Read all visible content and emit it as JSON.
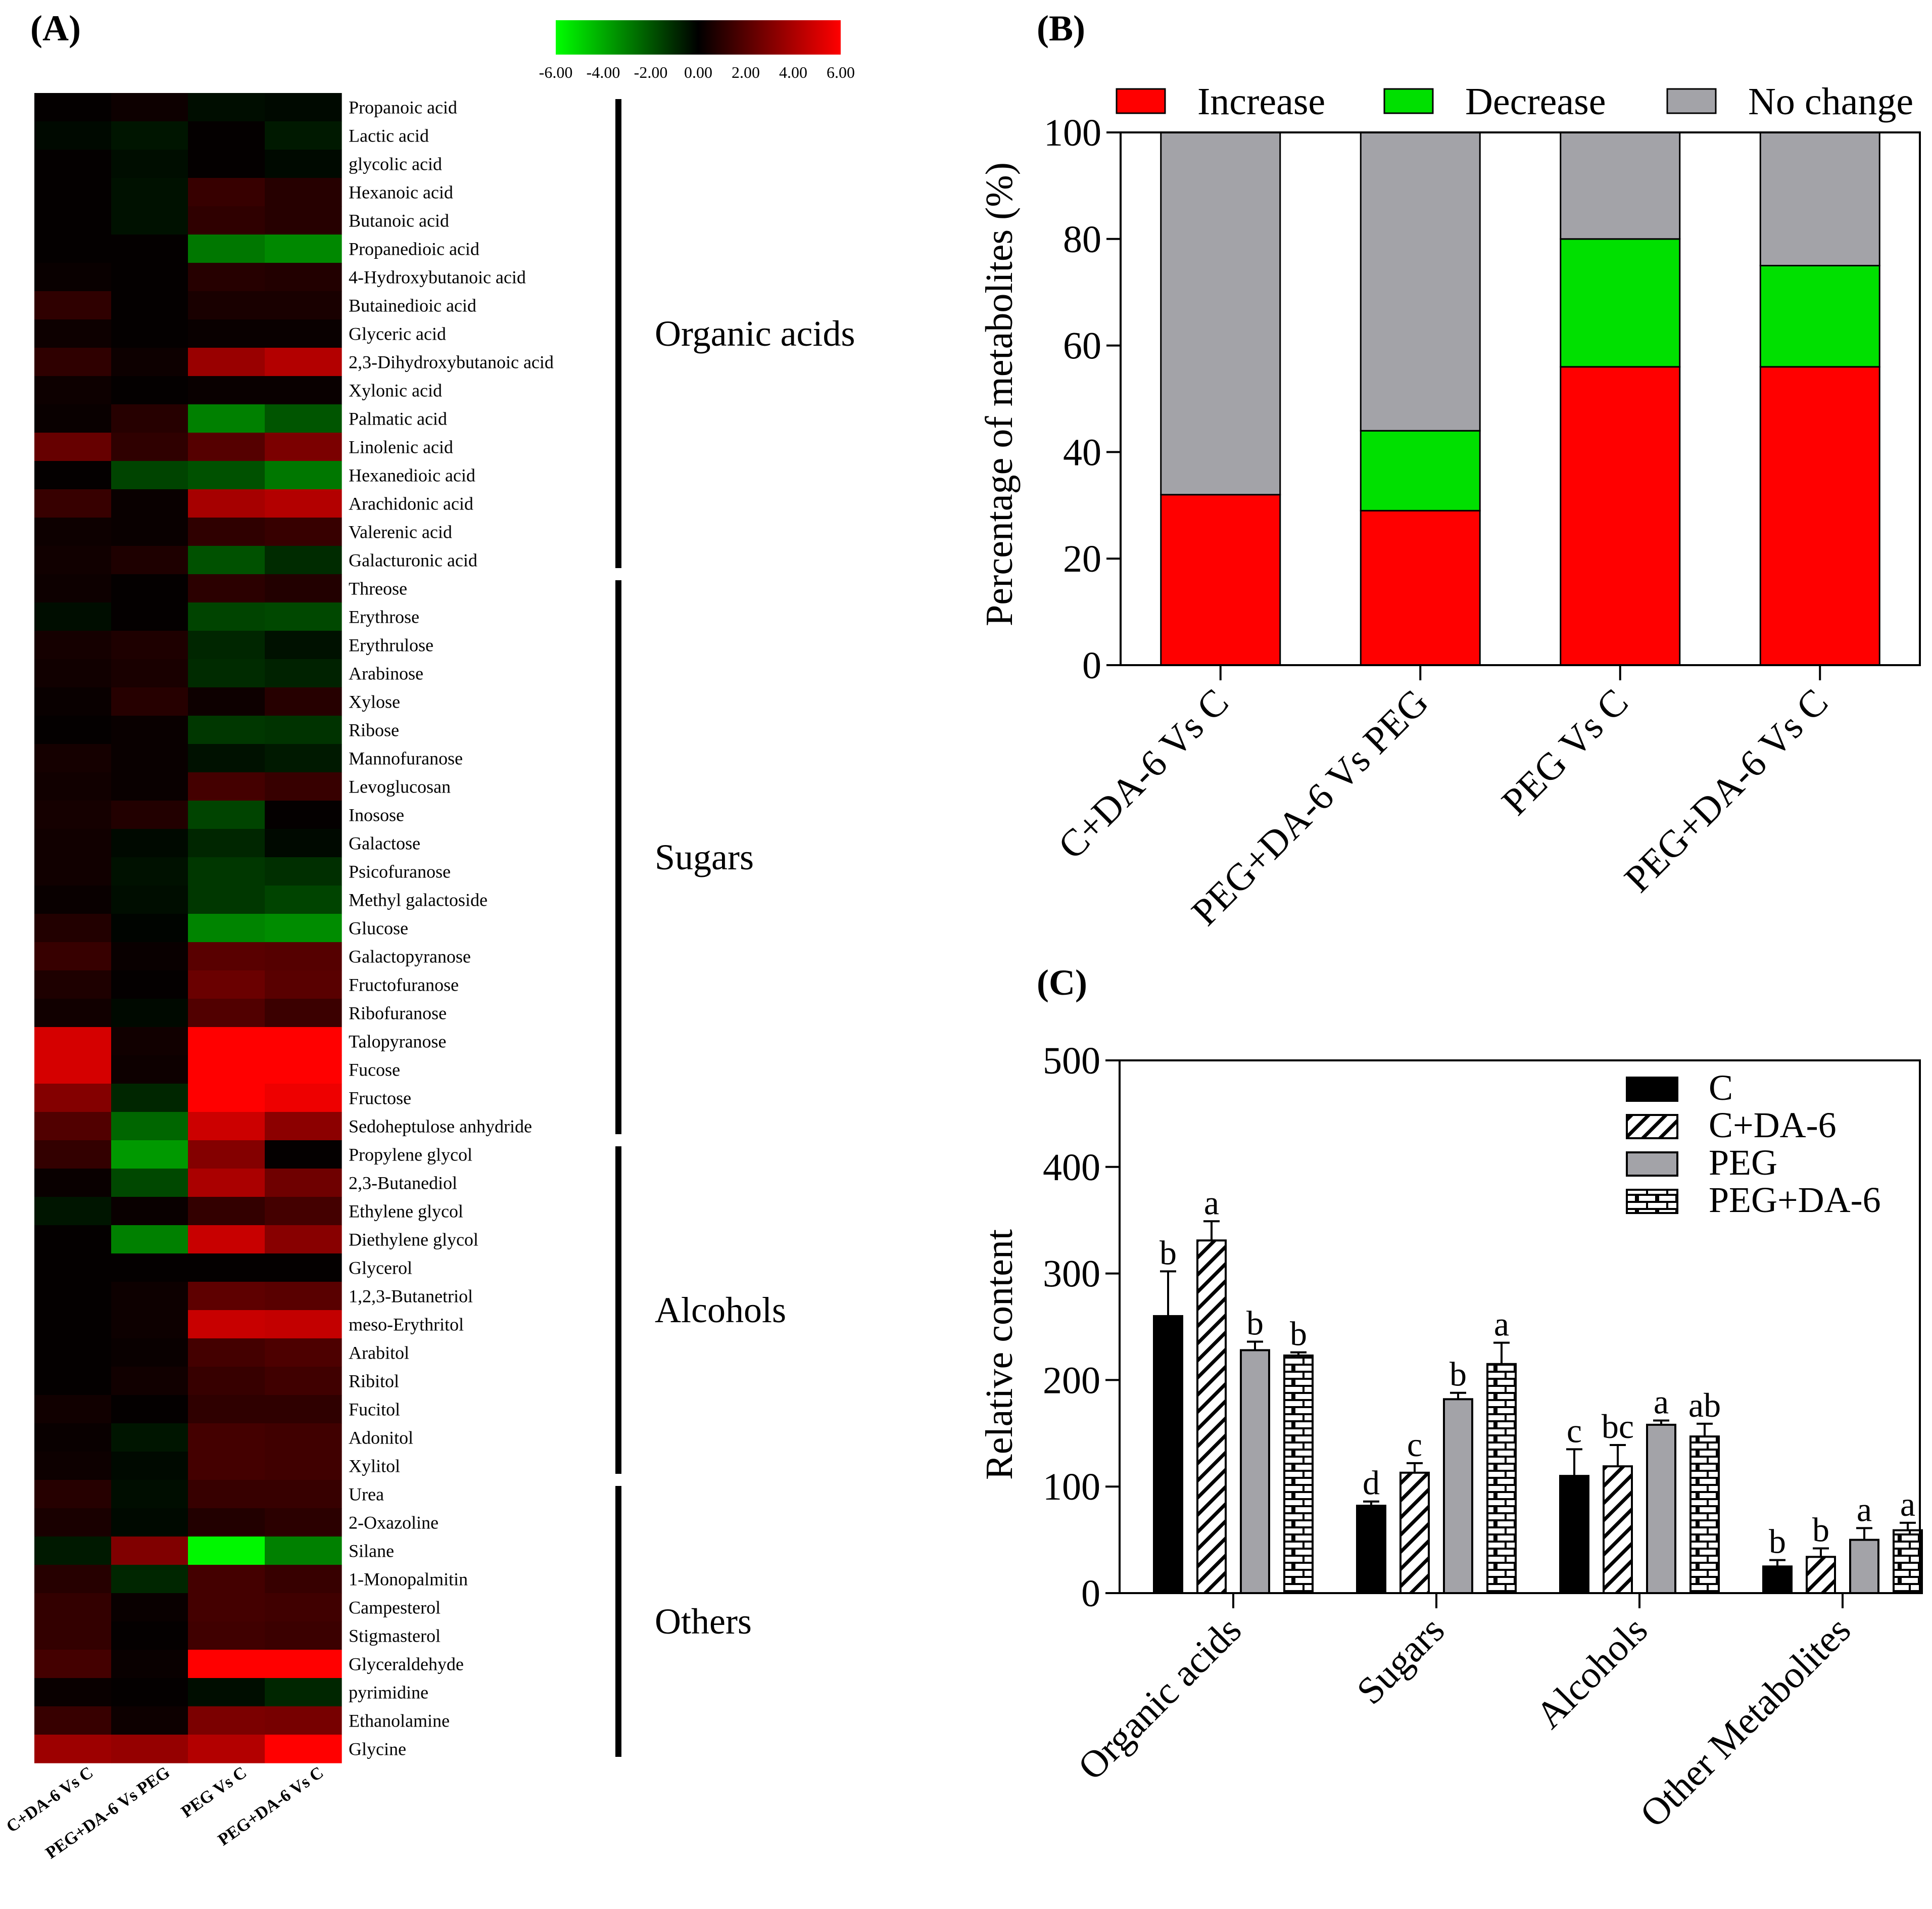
{
  "panels": {
    "a": "(A)",
    "b": "(B)",
    "c": "(C)"
  },
  "heatmap": {
    "colorbar_ticks": [
      "-6.00",
      "-4.00",
      "-2.00",
      "0.00",
      "2.00",
      "4.00",
      "6.00"
    ],
    "colorbar_range": [
      -6,
      6
    ],
    "columns": [
      "C+DA-6 Vs C",
      "PEG+DA-6 Vs PEG",
      "PEG Vs C",
      "PEG+DA-6 Vs C"
    ],
    "rows": [
      "Propanoic acid",
      "Lactic acid",
      "glycolic acid",
      "Hexanoic acid",
      "Butanoic acid",
      "Propanedioic acid",
      "4-Hydroxybutanoic acid",
      "Butainedioic acid",
      "Glyceric acid",
      "2,3-Dihydroxybutanoic acid",
      "Xylonic acid",
      "Palmatic acid",
      "Linolenic acid",
      "Hexanedioic acid",
      "Arachidonic acid",
      "Valerenic acid",
      "Galacturonic acid",
      "Threose",
      "Erythrose",
      "Erythrulose",
      "Arabinose",
      "Xylose",
      "Ribose",
      "Mannofuranose",
      "Levoglucosan",
      "Inosose",
      "Galactose",
      "Psicofuranose",
      "Methyl galactoside",
      "Glucose",
      "Galactopyranose",
      "Fructofuranose",
      "Ribofuranose",
      "Talopyranose",
      "Fucose",
      "Fructose",
      "Sedoheptulose anhydride",
      "Propylene glycol",
      "2,3-Butanediol",
      "Ethylene glycol",
      "Diethylene glycol",
      "Glycerol",
      "1,2,3-Butanetriol",
      "meso-Erythritol",
      "Arabitol",
      "Ribitol",
      "Fucitol",
      "Adonitol",
      "Xylitol",
      "Urea",
      "2-Oxazoline",
      "Silane",
      "1-Monopalmitin",
      "Campesterol",
      "Stigmasterol",
      "Glyceraldehyde",
      "pyrimidine",
      "Ethanolamine",
      "Glycine"
    ],
    "values": [
      [
        0.1,
        0.3,
        -0.3,
        -0.2
      ],
      [
        -0.2,
        -0.5,
        0.1,
        -0.6
      ],
      [
        0.1,
        -0.3,
        0.1,
        -0.2
      ],
      [
        0.1,
        -0.4,
        1.3,
        0.9
      ],
      [
        0.1,
        -0.4,
        1.1,
        0.9
      ],
      [
        0.1,
        0.1,
        -2.8,
        -3.2
      ],
      [
        0.2,
        0.1,
        0.9,
        0.8
      ],
      [
        1.1,
        0.1,
        0.6,
        0.6
      ],
      [
        0.3,
        0.1,
        0.2,
        0.2
      ],
      [
        1.1,
        0.3,
        3.6,
        4.2
      ],
      [
        0.3,
        0.1,
        0.2,
        0.2
      ],
      [
        0.2,
        0.9,
        -3.0,
        -2.0
      ],
      [
        2.4,
        1.1,
        2.0,
        2.9
      ],
      [
        0.1,
        -1.6,
        -1.9,
        -2.8
      ],
      [
        1.3,
        0.2,
        3.9,
        4.2
      ],
      [
        0.3,
        0.2,
        1.1,
        1.3
      ],
      [
        0.4,
        0.7,
        -1.9,
        -1.0
      ],
      [
        0.3,
        0.1,
        1.0,
        0.8
      ],
      [
        -0.3,
        0.1,
        -1.6,
        -1.7
      ],
      [
        0.5,
        0.7,
        -0.9,
        -0.4
      ],
      [
        0.4,
        0.6,
        -1.0,
        -0.8
      ],
      [
        0.2,
        0.9,
        0.3,
        0.9
      ],
      [
        0.1,
        0.2,
        -1.3,
        -1.2
      ],
      [
        0.5,
        0.2,
        -0.4,
        -0.6
      ],
      [
        0.4,
        0.2,
        1.6,
        1.3
      ],
      [
        0.5,
        0.8,
        -1.6,
        0.1
      ],
      [
        0.4,
        -0.2,
        -0.9,
        -0.2
      ],
      [
        0.4,
        -0.4,
        -1.3,
        -1.1
      ],
      [
        0.2,
        -0.3,
        -1.3,
        -1.6
      ],
      [
        0.8,
        -0.1,
        -3.1,
        -3.3
      ],
      [
        1.3,
        0.2,
        2.1,
        2.0
      ],
      [
        0.7,
        0.1,
        2.5,
        2.1
      ],
      [
        0.4,
        -0.2,
        1.9,
        1.4
      ],
      [
        5.0,
        0.4,
        6.0,
        6.0
      ],
      [
        5.0,
        0.3,
        6.0,
        6.0
      ],
      [
        3.1,
        -0.9,
        6.0,
        5.6
      ],
      [
        1.9,
        -2.4,
        4.8,
        3.3
      ],
      [
        1.2,
        -3.6,
        3.1,
        0.1
      ],
      [
        0.2,
        -1.7,
        4.0,
        2.6
      ],
      [
        -0.5,
        0.2,
        1.2,
        1.6
      ],
      [
        0.1,
        -3.0,
        4.7,
        3.2
      ],
      [
        0.1,
        0.1,
        0.1,
        0.1
      ],
      [
        0.1,
        0.3,
        2.2,
        2.1
      ],
      [
        0.1,
        0.3,
        4.7,
        4.6
      ],
      [
        0.1,
        0.2,
        1.6,
        1.8
      ],
      [
        0.1,
        0.4,
        1.3,
        1.5
      ],
      [
        0.4,
        0.1,
        1.1,
        1.1
      ],
      [
        0.2,
        -0.5,
        1.6,
        1.5
      ],
      [
        0.3,
        -0.2,
        1.6,
        1.5
      ],
      [
        0.9,
        -0.3,
        1.3,
        1.3
      ],
      [
        0.6,
        -0.2,
        0.8,
        1.0
      ],
      [
        -0.6,
        3.0,
        -5.8,
        -3.0
      ],
      [
        0.9,
        -0.9,
        1.6,
        1.3
      ],
      [
        1.2,
        0.2,
        1.6,
        1.5
      ],
      [
        1.2,
        0.1,
        1.5,
        1.4
      ],
      [
        1.6,
        0.2,
        6.0,
        6.0
      ],
      [
        0.2,
        0.1,
        -0.3,
        -0.9
      ],
      [
        1.3,
        0.3,
        2.9,
        2.8
      ],
      [
        3.7,
        3.5,
        4.2,
        6.0
      ]
    ],
    "groups": [
      {
        "label": "Organic acids",
        "start": 0,
        "end": 16
      },
      {
        "label": "Sugars",
        "start": 17,
        "end": 36
      },
      {
        "label": "Alcohols",
        "start": 37,
        "end": 48
      },
      {
        "label": "Others",
        "start": 49,
        "end": 58
      }
    ]
  },
  "chart_data": [
    {
      "type": "bar",
      "stacked": true,
      "title": "",
      "xlabel": "",
      "ylabel": "Percentage of metabolites   (%)",
      "ylim": [
        0,
        100
      ],
      "yticks": [
        0,
        20,
        40,
        60,
        80,
        100
      ],
      "categories": [
        "C+DA-6 Vs C",
        "PEG+DA-6 Vs PEG",
        "PEG Vs C",
        "PEG+DA-6 Vs C"
      ],
      "series": [
        {
          "name": "Increase",
          "color": "#ff0000",
          "values": [
            32,
            29,
            56,
            56
          ]
        },
        {
          "name": "Decrease",
          "color": "#00e000",
          "values": [
            0,
            15,
            24,
            19
          ]
        },
        {
          "name": "No change",
          "color": "#a3a3a8",
          "values": [
            68,
            56,
            20,
            25
          ]
        }
      ],
      "legend_position": "top"
    },
    {
      "type": "bar",
      "title": "",
      "xlabel": "",
      "ylabel": "Relative content",
      "ylim": [
        0,
        500
      ],
      "yticks": [
        0,
        100,
        200,
        300,
        400,
        500
      ],
      "categories": [
        "Organic acids",
        "Sugars",
        "Alcohols",
        "Other Metabolites"
      ],
      "series": [
        {
          "name": "C",
          "pattern": "solid-black",
          "values": [
            260,
            82,
            110,
            25
          ],
          "errors": [
            42,
            4,
            25,
            6
          ],
          "letters": [
            "b",
            "d",
            "c",
            "b"
          ]
        },
        {
          "name": "C+DA-6",
          "pattern": "hatched",
          "values": [
            331,
            113,
            119,
            34
          ],
          "errors": [
            18,
            9,
            20,
            8
          ],
          "letters": [
            "a",
            "c",
            "bc",
            "b"
          ]
        },
        {
          "name": "PEG",
          "pattern": "gray",
          "values": [
            228,
            182,
            158,
            50
          ],
          "errors": [
            8,
            6,
            4,
            11
          ],
          "letters": [
            "b",
            "b",
            "a",
            "a"
          ]
        },
        {
          "name": "PEG+DA-6",
          "pattern": "brick",
          "values": [
            223,
            215,
            147,
            59
          ],
          "errors": [
            3,
            20,
            12,
            7
          ],
          "letters": [
            "b",
            "a",
            "ab",
            "a"
          ]
        }
      ],
      "legend_position": "top-right"
    }
  ],
  "colors": {
    "increase": "#ff0000",
    "decrease": "#00e000",
    "nochange": "#a3a3a8",
    "heat_low": "#00ff00",
    "heat_mid": "#000000",
    "heat_high": "#ff0000"
  }
}
